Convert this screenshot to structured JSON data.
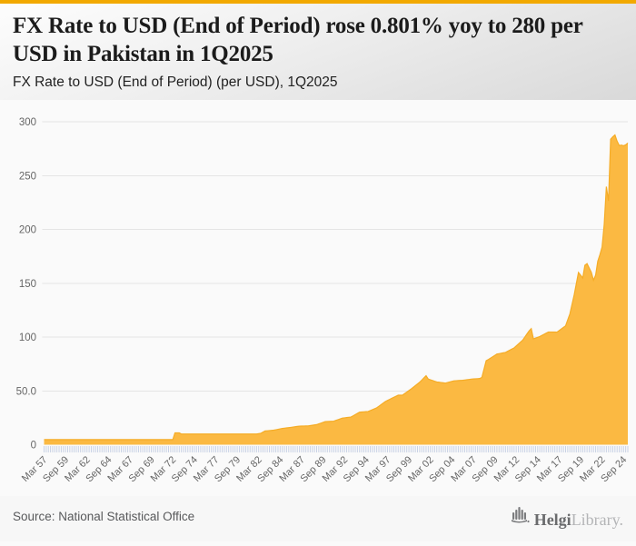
{
  "accent_color": "#F2A900",
  "header": {
    "title": "FX Rate to USD (End of Period) rose 0.801% yoy to 280 per USD in Pakistan in 1Q2025",
    "subtitle": "FX Rate to USD (End of Period) (per USD), 1Q2025"
  },
  "footer": {
    "source": "Source: National Statistical Office",
    "brand_bold": "Helgi",
    "brand_light": "Library."
  },
  "chart_data": {
    "type": "area",
    "title": "FX Rate to USD (End of Period) (per USD), 1Q2025",
    "series_name": "FX Rate to USD (End of Period)",
    "unit": "per USD",
    "country": "Pakistan",
    "latest_period": "1Q2025",
    "latest_value": 280,
    "yoy_change_pct": 0.801,
    "frequency": "quarterly",
    "x_start": "1957Q1",
    "x_end": "2025Q1",
    "x_tick_every": 10,
    "x_tick_labels": [
      "Mar 57",
      "Sep 59",
      "Mar 62",
      "Sep 64",
      "Mar 67",
      "Sep 69",
      "Mar 72",
      "Sep 74",
      "Mar 77",
      "Sep 79",
      "Mar 82",
      "Sep 84",
      "Mar 87",
      "Sep 89",
      "Mar 92",
      "Sep 94",
      "Mar 97",
      "Sep 99",
      "Mar 02",
      "Sep 04",
      "Mar 07",
      "Sep 09",
      "Mar 12",
      "Sep 14",
      "Mar 17",
      "Sep 19",
      "Mar 22",
      "Sep 24"
    ],
    "ylim": [
      0,
      300
    ],
    "y_tick_values": [
      0,
      50,
      100,
      150,
      200,
      250,
      300
    ],
    "y_tick_labels": [
      "0",
      "50.0",
      "100",
      "150",
      "200",
      "250",
      "300"
    ],
    "grid": true,
    "legend": false,
    "area_color": "#FBB942",
    "line_color": "#F5AC26",
    "grid_color": "#E4E4E4",
    "tick_color": "#C9D2E5",
    "axis_text_color": "#666666",
    "interpolation": "linear between quarterly anchors",
    "anchors": [
      [
        "1957Q1",
        4.76
      ],
      [
        "1971Q4",
        4.76
      ],
      [
        "1972Q1",
        4.76
      ],
      [
        "1972Q2",
        11.0
      ],
      [
        "1972Q4",
        11.0
      ],
      [
        "1973Q1",
        9.9
      ],
      [
        "1981Q4",
        9.9
      ],
      [
        "1982Q2",
        10.6
      ],
      [
        "1982Q4",
        12.75
      ],
      [
        "1983Q4",
        13.5
      ],
      [
        "1984Q4",
        15.1
      ],
      [
        "1985Q4",
        16.1
      ],
      [
        "1986Q4",
        17.25
      ],
      [
        "1987Q4",
        17.45
      ],
      [
        "1988Q4",
        18.65
      ],
      [
        "1989Q4",
        21.4
      ],
      [
        "1990Q4",
        21.9
      ],
      [
        "1991Q4",
        24.7
      ],
      [
        "1992Q4",
        25.7
      ],
      [
        "1993Q4",
        30.2
      ],
      [
        "1994Q4",
        30.85
      ],
      [
        "1995Q4",
        34.25
      ],
      [
        "1996Q4",
        40.1
      ],
      [
        "1997Q4",
        44.05
      ],
      [
        "1998Q2",
        46.0
      ],
      [
        "1998Q4",
        46.0
      ],
      [
        "1999Q4",
        51.7
      ],
      [
        "2000Q4",
        58.0
      ],
      [
        "2001Q3",
        64.1
      ],
      [
        "2001Q4",
        61.0
      ],
      [
        "2002Q4",
        58.25
      ],
      [
        "2003Q4",
        57.25
      ],
      [
        "2004Q4",
        59.35
      ],
      [
        "2005Q4",
        59.8
      ],
      [
        "2006Q4",
        60.9
      ],
      [
        "2007Q4",
        61.5
      ],
      [
        "2008Q1",
        62.5
      ],
      [
        "2008Q3",
        78.0
      ],
      [
        "2008Q4",
        79.1
      ],
      [
        "2009Q4",
        84.2
      ],
      [
        "2010Q4",
        85.7
      ],
      [
        "2011Q4",
        89.9
      ],
      [
        "2012Q4",
        97.1
      ],
      [
        "2013Q3",
        105.7
      ],
      [
        "2013Q4",
        107.8
      ],
      [
        "2014Q1",
        98.3
      ],
      [
        "2014Q4",
        100.5
      ],
      [
        "2015Q4",
        104.7
      ],
      [
        "2016Q4",
        104.6
      ],
      [
        "2017Q4",
        110.4
      ],
      [
        "2018Q2",
        121.5
      ],
      [
        "2018Q4",
        139.1
      ],
      [
        "2019Q2",
        160.0
      ],
      [
        "2019Q4",
        154.9
      ],
      [
        "2020Q1",
        166.7
      ],
      [
        "2020Q2",
        168.2
      ],
      [
        "2020Q4",
        160.1
      ],
      [
        "2021Q1",
        152.8
      ],
      [
        "2021Q2",
        157.5
      ],
      [
        "2021Q3",
        170.5
      ],
      [
        "2021Q4",
        176.5
      ],
      [
        "2022Q1",
        183.5
      ],
      [
        "2022Q2",
        204.8
      ],
      [
        "2022Q3",
        239.7
      ],
      [
        "2022Q4",
        226.4
      ],
      [
        "2023Q1",
        283.8
      ],
      [
        "2023Q2",
        286.0
      ],
      [
        "2023Q3",
        287.7
      ],
      [
        "2023Q4",
        281.9
      ],
      [
        "2024Q1",
        277.9
      ],
      [
        "2024Q2",
        278.3
      ],
      [
        "2024Q3",
        277.7
      ],
      [
        "2024Q4",
        278.5
      ],
      [
        "2025Q1",
        280.2
      ]
    ]
  }
}
